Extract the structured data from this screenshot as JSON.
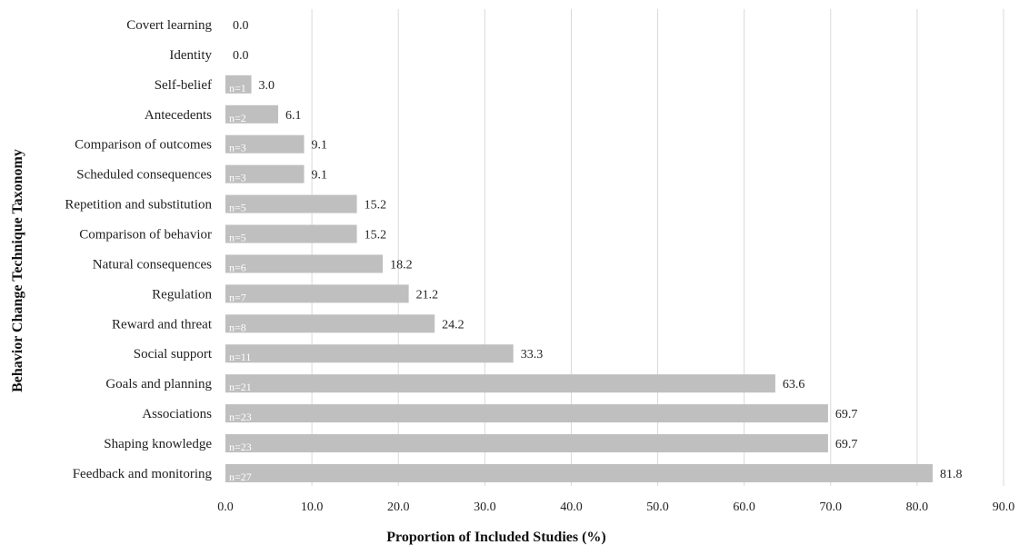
{
  "chart_data": {
    "type": "bar",
    "orientation": "horizontal",
    "xlabel": "Proportion of Included Studies (%)",
    "ylabel": "Behavior Change Technique Taxonomy",
    "xlim": [
      0,
      90
    ],
    "xticks": [
      "0.0",
      "10.0",
      "20.0",
      "30.0",
      "40.0",
      "50.0",
      "60.0",
      "70.0",
      "80.0",
      "90.0"
    ],
    "grid": true,
    "bar_color": "#bfbfbf",
    "categories": [
      "Covert learning",
      "Identity",
      "Self-belief",
      "Antecedents",
      "Comparison of outcomes",
      "Scheduled consequences",
      "Repetition and substitution",
      "Comparison of behavior",
      "Natural consequences",
      "Regulation",
      "Reward and threat",
      "Social support",
      "Goals and planning",
      "Associations",
      "Shaping knowledge",
      "Feedback and monitoring"
    ],
    "values": [
      0.0,
      0.0,
      3.0,
      6.1,
      9.1,
      9.1,
      15.2,
      15.2,
      18.2,
      21.2,
      24.2,
      33.3,
      63.6,
      69.7,
      69.7,
      81.8
    ],
    "value_labels": [
      "0.0",
      "0.0",
      "3.0",
      "6.1",
      "9.1",
      "9.1",
      "15.2",
      "15.2",
      "18.2",
      "21.2",
      "24.2",
      "33.3",
      "63.6",
      "69.7",
      "69.7",
      "81.8"
    ],
    "n_labels": [
      "",
      "",
      "n=1",
      "n=2",
      "n=3",
      "n=3",
      "n=5",
      "n=5",
      "n=6",
      "n=7",
      "n=8",
      "n=11",
      "n=21",
      "n=23",
      "n=23",
      "n=27"
    ]
  }
}
